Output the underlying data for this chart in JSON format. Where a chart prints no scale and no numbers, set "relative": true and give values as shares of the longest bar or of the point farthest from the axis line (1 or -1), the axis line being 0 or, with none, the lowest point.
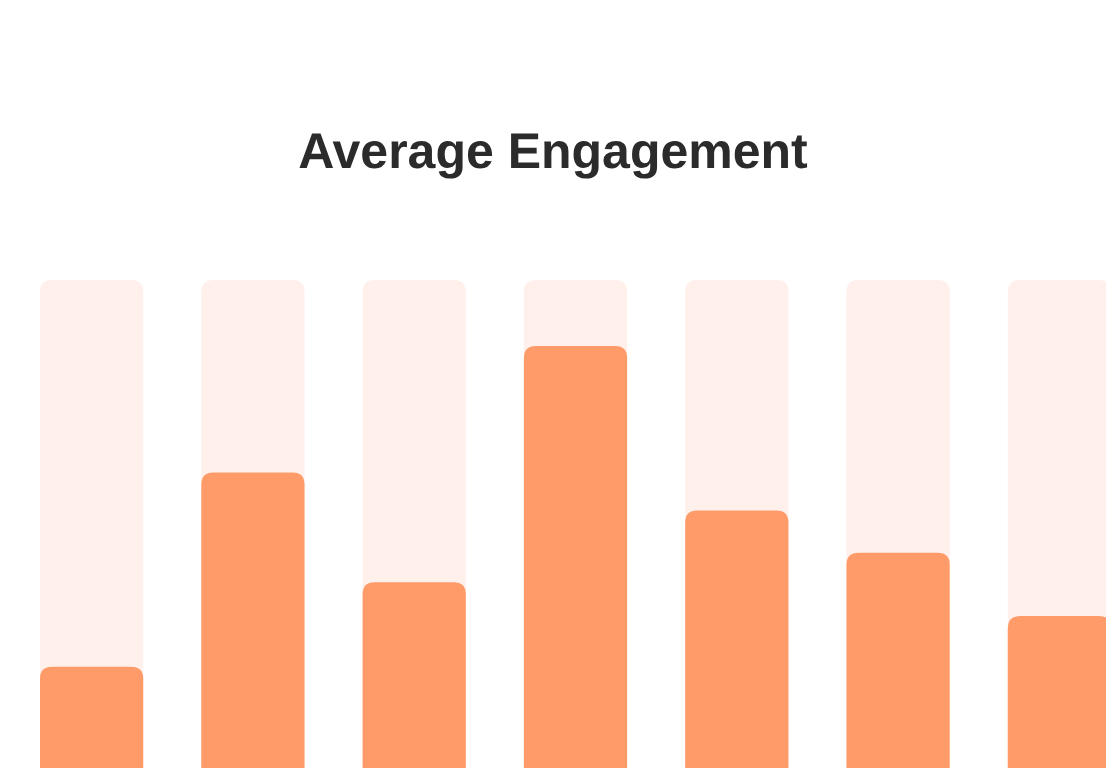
{
  "chart_data": {
    "type": "bar",
    "title": "Average Engagement",
    "relative": true,
    "categories": [
      null,
      null,
      null,
      null,
      null,
      null,
      null
    ],
    "series": [
      {
        "color": "#ff9b69",
        "values": [
          0.24,
          0.7,
          0.44,
          1,
          0.61,
          0.51,
          0.36
        ]
      }
    ]
  }
}
